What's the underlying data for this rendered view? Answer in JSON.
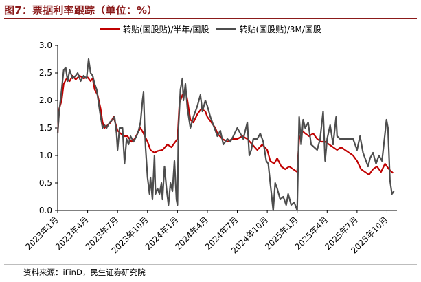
{
  "figure_title": "图7：票据利率跟踪（单位：%）",
  "source": "资料来源：iFinD，民生证券研究院",
  "colors": {
    "series1": "#c00000",
    "series2": "#4d4d4d",
    "title": "#8b1a1a"
  },
  "chart_data": {
    "type": "line",
    "x_unit": "month index (0 = 2023年1月)",
    "xlim": [
      0,
      34
    ],
    "ylim": [
      0,
      3
    ],
    "yticks": [
      "0.0",
      "0.5",
      "1.0",
      "1.5",
      "2.0",
      "2.5",
      "3.0"
    ],
    "xticks": [
      {
        "x": 0,
        "label": "2023年1月"
      },
      {
        "x": 3,
        "label": "2023年4月"
      },
      {
        "x": 6,
        "label": "2023年7月"
      },
      {
        "x": 9,
        "label": "2023年10月"
      },
      {
        "x": 12,
        "label": "2024年1月"
      },
      {
        "x": 15,
        "label": "2024年4月"
      },
      {
        "x": 18,
        "label": "2024年7月"
      },
      {
        "x": 21,
        "label": "2024年10月"
      },
      {
        "x": 24,
        "label": "2025年1月"
      },
      {
        "x": 27,
        "label": "2025年4月"
      },
      {
        "x": 30,
        "label": "2025年7月"
      },
      {
        "x": 33,
        "label": "2025年10月"
      }
    ],
    "grid": false,
    "legend_position": "top",
    "series": [
      {
        "name": "转贴(国股贴)/半年/国股",
        "color": "#c00000",
        "points": [
          [
            0,
            1.4
          ],
          [
            0.15,
            1.85
          ],
          [
            0.4,
            2.0
          ],
          [
            0.6,
            2.3
          ],
          [
            0.9,
            2.4
          ],
          [
            1.2,
            2.35
          ],
          [
            1.5,
            2.45
          ],
          [
            1.8,
            2.38
          ],
          [
            2.2,
            2.45
          ],
          [
            2.6,
            2.4
          ],
          [
            3.0,
            2.42
          ],
          [
            3.3,
            2.35
          ],
          [
            3.5,
            2.4
          ],
          [
            3.7,
            2.2
          ],
          [
            4.0,
            2.1
          ],
          [
            4.3,
            1.85
          ],
          [
            4.5,
            1.6
          ],
          [
            4.7,
            1.5
          ],
          [
            5.0,
            1.55
          ],
          [
            5.3,
            1.6
          ],
          [
            5.6,
            1.7
          ],
          [
            6.0,
            1.45
          ],
          [
            6.3,
            1.4
          ],
          [
            6.6,
            1.35
          ],
          [
            7.0,
            1.35
          ],
          [
            7.4,
            1.25
          ],
          [
            7.7,
            1.3
          ],
          [
            8.0,
            1.4
          ],
          [
            8.3,
            1.5
          ],
          [
            8.6,
            1.4
          ],
          [
            9.0,
            1.25
          ],
          [
            9.3,
            1.1
          ],
          [
            9.7,
            1.05
          ],
          [
            10.0,
            1.08
          ],
          [
            10.5,
            1.1
          ],
          [
            11.0,
            1.2
          ],
          [
            11.4,
            1.15
          ],
          [
            11.8,
            1.25
          ],
          [
            12.0,
            1.3
          ],
          [
            12.2,
            1.95
          ],
          [
            12.5,
            2.1
          ],
          [
            12.8,
            2.2
          ],
          [
            13.0,
            2.0
          ],
          [
            13.3,
            1.65
          ],
          [
            13.6,
            1.6
          ],
          [
            14.0,
            1.75
          ],
          [
            14.4,
            1.85
          ],
          [
            14.8,
            1.8
          ],
          [
            15.0,
            1.7
          ],
          [
            15.4,
            1.6
          ],
          [
            15.8,
            1.5
          ],
          [
            16.0,
            1.4
          ],
          [
            16.5,
            1.3
          ],
          [
            17.0,
            1.25
          ],
          [
            17.5,
            1.3
          ],
          [
            18.0,
            1.3
          ],
          [
            18.5,
            1.35
          ],
          [
            19.0,
            1.3
          ],
          [
            19.5,
            1.2
          ],
          [
            20.0,
            1.1
          ],
          [
            20.5,
            1.2
          ],
          [
            21.0,
            1.1
          ],
          [
            21.3,
            0.9
          ],
          [
            21.7,
            0.85
          ],
          [
            22.0,
            0.95
          ],
          [
            22.4,
            0.8
          ],
          [
            22.8,
            0.75
          ],
          [
            23.2,
            0.8
          ],
          [
            23.6,
            0.75
          ],
          [
            24.0,
            0.7
          ],
          [
            24.2,
            1.3
          ],
          [
            24.5,
            1.45
          ],
          [
            24.8,
            1.4
          ],
          [
            25.2,
            1.35
          ],
          [
            25.6,
            1.4
          ],
          [
            26.0,
            1.3
          ],
          [
            26.4,
            1.25
          ],
          [
            26.8,
            1.25
          ],
          [
            27.2,
            1.2
          ],
          [
            27.6,
            1.15
          ],
          [
            28.0,
            1.1
          ],
          [
            28.4,
            1.15
          ],
          [
            28.8,
            1.1
          ],
          [
            29.2,
            1.05
          ],
          [
            29.6,
            1.0
          ],
          [
            30.0,
            0.9
          ],
          [
            30.4,
            0.75
          ],
          [
            30.8,
            0.7
          ],
          [
            31.2,
            0.65
          ],
          [
            31.6,
            0.75
          ],
          [
            32.0,
            0.8
          ],
          [
            32.4,
            0.7
          ],
          [
            32.8,
            0.85
          ],
          [
            33.2,
            0.75
          ],
          [
            33.6,
            0.68
          ]
        ]
      },
      {
        "name": "转贴(国股贴)/3M/国股",
        "color": "#4d4d4d",
        "points": [
          [
            0,
            1.4
          ],
          [
            0.15,
            1.8
          ],
          [
            0.4,
            2.2
          ],
          [
            0.6,
            2.55
          ],
          [
            0.8,
            2.6
          ],
          [
            1.0,
            2.35
          ],
          [
            1.2,
            2.55
          ],
          [
            1.5,
            2.4
          ],
          [
            1.8,
            2.45
          ],
          [
            2.0,
            2.5
          ],
          [
            2.3,
            2.35
          ],
          [
            2.6,
            2.45
          ],
          [
            2.9,
            2.4
          ],
          [
            3.1,
            2.75
          ],
          [
            3.3,
            2.5
          ],
          [
            3.5,
            2.45
          ],
          [
            3.7,
            2.3
          ],
          [
            3.9,
            2.2
          ],
          [
            4.1,
            1.95
          ],
          [
            4.3,
            1.7
          ],
          [
            4.5,
            1.5
          ],
          [
            4.7,
            1.55
          ],
          [
            4.9,
            1.5
          ],
          [
            5.2,
            1.6
          ],
          [
            5.5,
            1.65
          ],
          [
            5.7,
            1.7
          ],
          [
            5.9,
            1.4
          ],
          [
            6.0,
            1.1
          ],
          [
            6.2,
            1.5
          ],
          [
            6.5,
            1.5
          ],
          [
            6.7,
            0.85
          ],
          [
            6.9,
            1.3
          ],
          [
            7.1,
            1.2
          ],
          [
            7.3,
            1.35
          ],
          [
            7.6,
            1.25
          ],
          [
            7.9,
            1.35
          ],
          [
            8.1,
            1.45
          ],
          [
            8.3,
            1.6
          ],
          [
            8.5,
            2.0
          ],
          [
            8.6,
            2.15
          ],
          [
            8.7,
            1.6
          ],
          [
            8.8,
            1.15
          ],
          [
            9.0,
            0.6
          ],
          [
            9.2,
            0.3
          ],
          [
            9.3,
            0.6
          ],
          [
            9.5,
            0.2
          ],
          [
            9.7,
            1.0
          ],
          [
            9.8,
            0.3
          ],
          [
            10.0,
            0.4
          ],
          [
            10.2,
            0.3
          ],
          [
            10.4,
            0.5
          ],
          [
            10.5,
            0.2
          ],
          [
            10.7,
            0.8
          ],
          [
            10.9,
            0.4
          ],
          [
            11.1,
            0.1
          ],
          [
            11.3,
            0.5
          ],
          [
            11.5,
            0.35
          ],
          [
            11.7,
            0.9
          ],
          [
            11.9,
            0.2
          ],
          [
            12.0,
            0.1
          ],
          [
            12.1,
            1.5
          ],
          [
            12.3,
            2.2
          ],
          [
            12.5,
            2.4
          ],
          [
            12.6,
            2.0
          ],
          [
            12.8,
            2.3
          ],
          [
            13.0,
            1.85
          ],
          [
            13.3,
            1.5
          ],
          [
            13.6,
            1.7
          ],
          [
            14.0,
            1.9
          ],
          [
            14.3,
            2.1
          ],
          [
            14.5,
            1.8
          ],
          [
            14.8,
            2.0
          ],
          [
            15.0,
            1.9
          ],
          [
            15.3,
            1.7
          ],
          [
            15.6,
            1.55
          ],
          [
            16.0,
            1.35
          ],
          [
            16.3,
            1.45
          ],
          [
            16.6,
            1.2
          ],
          [
            17.0,
            1.3
          ],
          [
            17.3,
            1.25
          ],
          [
            17.6,
            1.35
          ],
          [
            18.0,
            1.5
          ],
          [
            18.3,
            1.4
          ],
          [
            18.6,
            1.3
          ],
          [
            19.0,
            1.6
          ],
          [
            19.2,
            1.0
          ],
          [
            19.4,
            1.1
          ],
          [
            19.6,
            1.3
          ],
          [
            20.0,
            1.3
          ],
          [
            20.3,
            1.4
          ],
          [
            20.6,
            1.25
          ],
          [
            20.9,
            0.9
          ],
          [
            21.1,
            0.85
          ],
          [
            21.3,
            0.5
          ],
          [
            21.6,
            0.0
          ],
          [
            21.8,
            0.5
          ],
          [
            22.0,
            0.4
          ],
          [
            22.3,
            0.2
          ],
          [
            22.6,
            0.25
          ],
          [
            22.9,
            0.1
          ],
          [
            23.1,
            0.3
          ],
          [
            23.4,
            0.1
          ],
          [
            23.7,
            0.15
          ],
          [
            23.9,
            0.05
          ],
          [
            24.0,
            0.0
          ],
          [
            24.2,
            1.7
          ],
          [
            24.4,
            1.2
          ],
          [
            24.6,
            1.65
          ],
          [
            24.8,
            1.5
          ],
          [
            25.1,
            1.6
          ],
          [
            25.4,
            1.2
          ],
          [
            25.7,
            1.15
          ],
          [
            26.0,
            1.1
          ],
          [
            26.3,
            1.3
          ],
          [
            26.6,
            1.8
          ],
          [
            26.8,
            0.9
          ],
          [
            27.0,
            1.3
          ],
          [
            27.3,
            1.55
          ],
          [
            27.6,
            1.2
          ],
          [
            27.9,
            1.7
          ],
          [
            28.0,
            1.35
          ],
          [
            28.3,
            1.3
          ],
          [
            28.6,
            1.3
          ],
          [
            29.0,
            1.3
          ],
          [
            29.3,
            1.3
          ],
          [
            29.6,
            1.3
          ],
          [
            30.0,
            1.1
          ],
          [
            30.3,
            1.35
          ],
          [
            30.6,
            1.05
          ],
          [
            30.9,
            0.9
          ],
          [
            31.1,
            0.8
          ],
          [
            31.3,
            0.95
          ],
          [
            31.6,
            1.05
          ],
          [
            31.9,
            0.85
          ],
          [
            32.2,
            1.0
          ],
          [
            32.5,
            0.9
          ],
          [
            32.8,
            1.4
          ],
          [
            32.95,
            1.65
          ],
          [
            33.1,
            1.5
          ],
          [
            33.3,
            0.55
          ],
          [
            33.5,
            0.3
          ],
          [
            33.7,
            0.35
          ]
        ]
      }
    ]
  }
}
